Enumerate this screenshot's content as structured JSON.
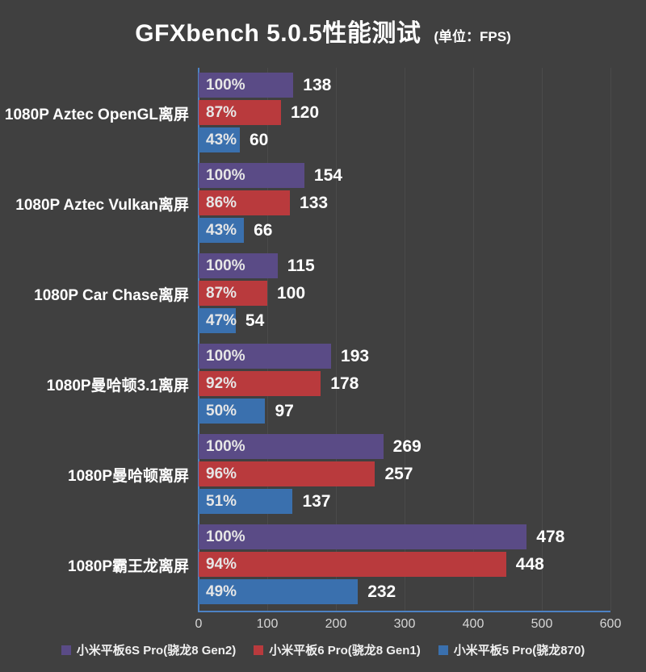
{
  "title": {
    "main": "GFXbench 5.0.5性能测试",
    "unit": "(单位：FPS)"
  },
  "chart_data": {
    "type": "bar",
    "orientation": "horizontal",
    "title": "GFXbench 5.0.5性能测试",
    "unit_label": "(单位：FPS)",
    "categories": [
      "1080P Aztec OpenGL离屏",
      "1080P Aztec Vulkan离屏",
      "1080P Car Chase离屏",
      "1080P曼哈顿3.1离屏",
      "1080P曼哈顿离屏",
      "1080P霸王龙离屏"
    ],
    "series": [
      {
        "name": "小米平板6S Pro(骁龙8 Gen2)",
        "color": "#5a4b86",
        "values": [
          138,
          154,
          115,
          193,
          269,
          478
        ],
        "percent_labels": [
          "100%",
          "100%",
          "100%",
          "100%",
          "100%",
          "100%"
        ]
      },
      {
        "name": "小米平板6 Pro(骁龙8 Gen1)",
        "color": "#b93a3d",
        "values": [
          120,
          133,
          100,
          178,
          257,
          448
        ],
        "percent_labels": [
          "87%",
          "86%",
          "87%",
          "92%",
          "96%",
          "94%"
        ]
      },
      {
        "name": "小米平板5 Pro(骁龙870)",
        "color": "#3a70ae",
        "values": [
          60,
          66,
          54,
          97,
          137,
          232
        ],
        "percent_labels": [
          "43%",
          "43%",
          "47%",
          "50%",
          "51%",
          "49%"
        ]
      }
    ],
    "xlim": [
      0,
      600
    ],
    "xticks": [
      0,
      100,
      200,
      300,
      400,
      500,
      600
    ],
    "grid": true,
    "legend_position": "bottom"
  },
  "colors": {
    "background": "#404040",
    "gridline": "#4b4b4b",
    "axis_line": "#4d82c4",
    "title_text": "#ffffff",
    "category_text": "#ffffff",
    "tick_text": "#d6d6d6",
    "value_text": "#ffffff",
    "percent_text": "#e6e6e6",
    "legend_text": "#f0f0f0"
  }
}
